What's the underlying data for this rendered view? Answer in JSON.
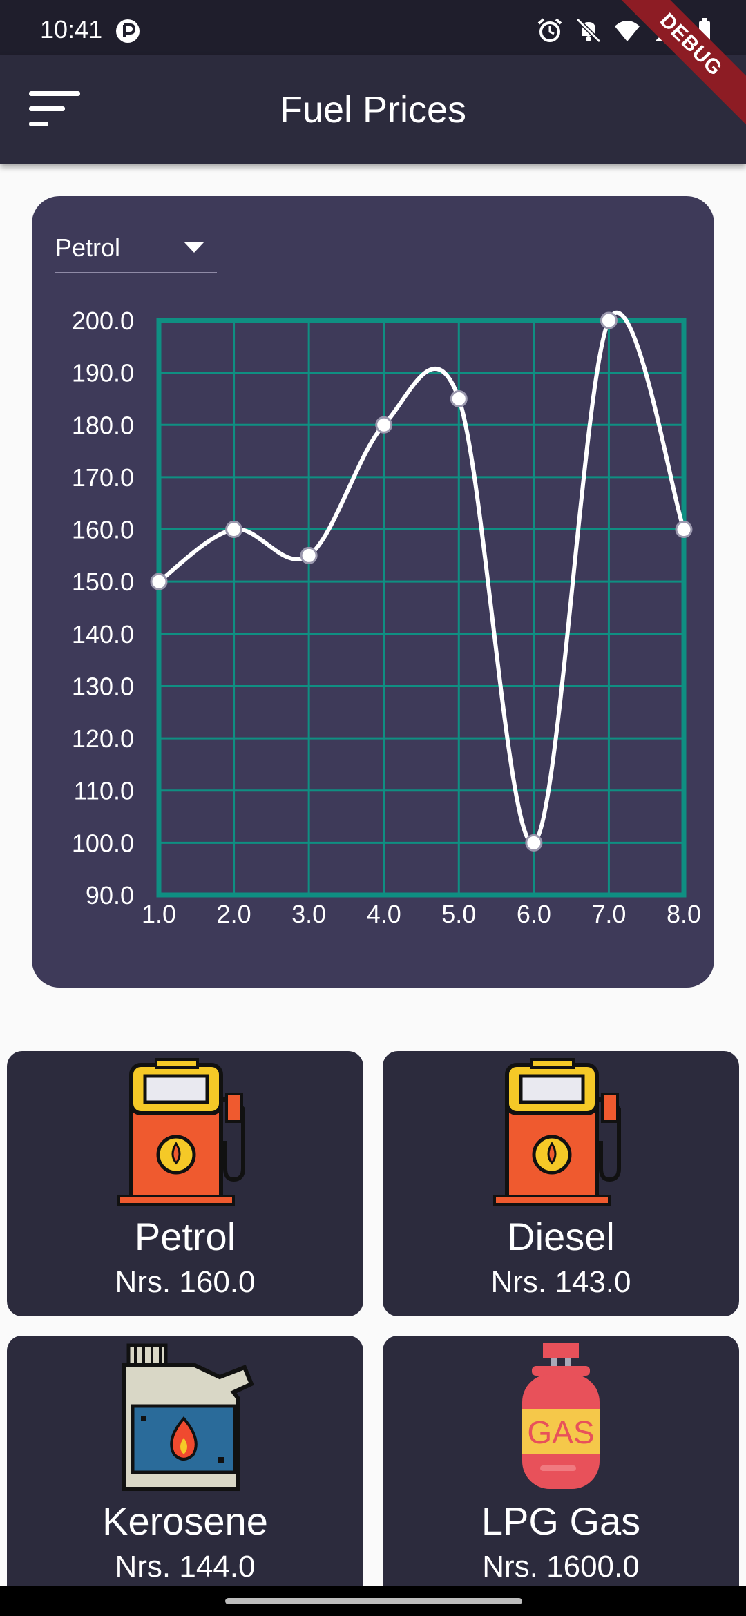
{
  "status_bar": {
    "time": "10:41"
  },
  "debug_ribbon": "DEBUG",
  "app_bar": {
    "title": "Fuel Prices"
  },
  "selector": {
    "value": "Petrol"
  },
  "chart_data": {
    "type": "line",
    "x": [
      1,
      2,
      3,
      4,
      5,
      6,
      7,
      8
    ],
    "series": [
      {
        "values": [
          150,
          160,
          155,
          180,
          185,
          100,
          200,
          160
        ]
      }
    ],
    "xlim": [
      1,
      8
    ],
    "ylim": [
      90,
      200
    ],
    "x_ticks": [
      "1.0",
      "2.0",
      "3.0",
      "4.0",
      "5.0",
      "6.0",
      "7.0",
      "8.0"
    ],
    "y_ticks": [
      "90.0",
      "100.0",
      "110.0",
      "120.0",
      "130.0",
      "140.0",
      "150.0",
      "160.0",
      "170.0",
      "180.0",
      "190.0",
      "200.0"
    ],
    "grid": true,
    "line_color": "#ffffff",
    "grid_color": "#0f8f82"
  },
  "fuels": [
    {
      "name": "Petrol",
      "price": "Nrs. 160.0",
      "icon": "fuel-pump-icon"
    },
    {
      "name": "Diesel",
      "price": "Nrs. 143.0",
      "icon": "fuel-pump-icon"
    },
    {
      "name": "Kerosene",
      "price": "Nrs. 144.0",
      "icon": "kerosene-jerrycan-icon"
    },
    {
      "name": "LPG Gas",
      "price": "Nrs. 1600.0",
      "icon": "gas-cylinder-icon"
    }
  ]
}
